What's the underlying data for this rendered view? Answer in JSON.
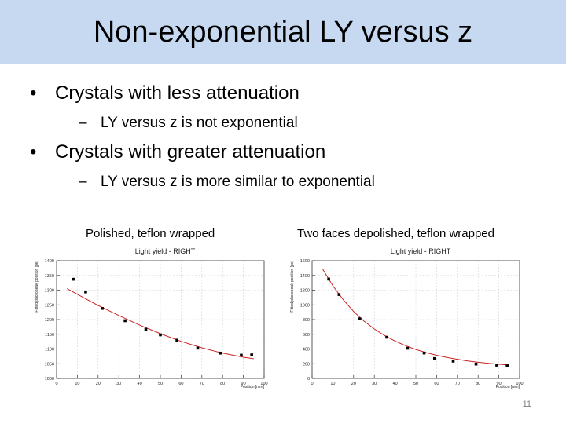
{
  "slide": {
    "title": "Non-exponential LY versus z",
    "bullets": [
      {
        "text": "Crystals with less attenuation",
        "sub": "LY versus z is not exponential"
      },
      {
        "text": "Crystals with greater attenuation",
        "sub": "LY versus z is more similar to exponential"
      }
    ],
    "bullet_symbol": "•",
    "sub_symbol": "–",
    "page_number": "11"
  },
  "chart_data": [
    {
      "type": "scatter",
      "caption": "Polished, teflon wrapped",
      "title": "Light yield - RIGHT",
      "xlabel": "Position [mm]",
      "ylabel": "Fitted photopeak position [pe]",
      "xlim": [
        0,
        100
      ],
      "ylim": [
        1000,
        1400
      ],
      "xticks": [
        0,
        10,
        20,
        30,
        40,
        50,
        60,
        70,
        80,
        90,
        100
      ],
      "yticks": [
        1000,
        1050,
        1100,
        1150,
        1200,
        1250,
        1300,
        1350,
        1400
      ],
      "grid": true,
      "colors": {
        "points": "#000000",
        "fit": "#cc2222",
        "grid": "#d4d4d4"
      },
      "points": {
        "x": [
          8,
          14,
          22,
          33,
          43,
          50,
          58,
          68,
          79,
          89,
          94
        ],
        "y": [
          1337,
          1294,
          1238,
          1196,
          1167,
          1148,
          1130,
          1103,
          1086,
          1079,
          1080
        ]
      },
      "fit": {
        "x": [
          5,
          10,
          20,
          30,
          40,
          50,
          60,
          70,
          80,
          90,
          95
        ],
        "y": [
          1305,
          1286,
          1248,
          1214,
          1181,
          1152,
          1126,
          1104,
          1086,
          1072,
          1067
        ]
      }
    },
    {
      "type": "scatter",
      "caption": "Two faces depolished, teflon wrapped",
      "title": "Light yield - RIGHT",
      "xlabel": "Position [mm]",
      "ylabel": "Fitted photopeak position [pe]",
      "xlim": [
        0,
        100
      ],
      "ylim": [
        0,
        1600
      ],
      "xticks": [
        0,
        10,
        20,
        30,
        40,
        50,
        60,
        70,
        80,
        90,
        100
      ],
      "yticks": [
        0,
        200,
        400,
        600,
        800,
        1000,
        1200,
        1400,
        1600
      ],
      "grid": true,
      "colors": {
        "points": "#000000",
        "fit": "#cc2222",
        "grid": "#d4d4d4"
      },
      "points": {
        "x": [
          8,
          13,
          23,
          36,
          46,
          54,
          59,
          68,
          79,
          89,
          94
        ],
        "y": [
          1350,
          1140,
          810,
          560,
          410,
          345,
          270,
          235,
          195,
          180,
          178
        ]
      },
      "fit": {
        "x": [
          5,
          10,
          15,
          20,
          25,
          30,
          35,
          40,
          45,
          50,
          55,
          60,
          65,
          70,
          75,
          80,
          85,
          90,
          95
        ],
        "y": [
          1490,
          1260,
          1070,
          910,
          780,
          672,
          582,
          508,
          446,
          394,
          351,
          315,
          285,
          260,
          238,
          220,
          205,
          192,
          181
        ]
      }
    }
  ]
}
